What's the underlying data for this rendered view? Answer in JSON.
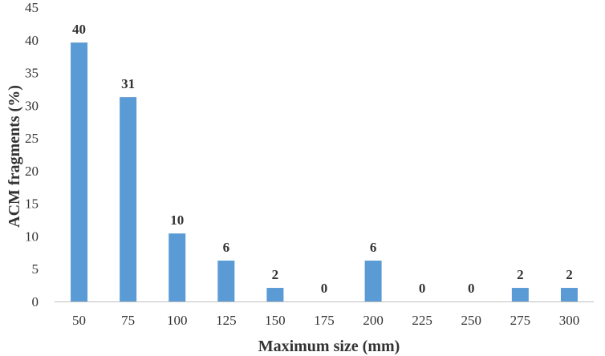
{
  "chart_data": {
    "type": "bar",
    "categories": [
      "50",
      "75",
      "100",
      "125",
      "150",
      "175",
      "200",
      "225",
      "250",
      "275",
      "300"
    ],
    "values": [
      39.6,
      31.25,
      10.4,
      6.25,
      2.08,
      0,
      6.25,
      0,
      0,
      2.08,
      2.08
    ],
    "data_labels": [
      "40",
      "31",
      "10",
      "6",
      "2",
      "0",
      "6",
      "0",
      "0",
      "2",
      "2"
    ],
    "xlabel": "Maximum size (mm)",
    "ylabel": "ACM fragments (%)",
    "ylim": [
      0,
      45
    ],
    "yticks": [
      "0",
      "5",
      "10",
      "15",
      "20",
      "25",
      "30",
      "35",
      "40",
      "45"
    ],
    "grid": false,
    "legend": "none",
    "bar_color": "#5b9bd5",
    "axis_color": "#bfbfbf"
  }
}
